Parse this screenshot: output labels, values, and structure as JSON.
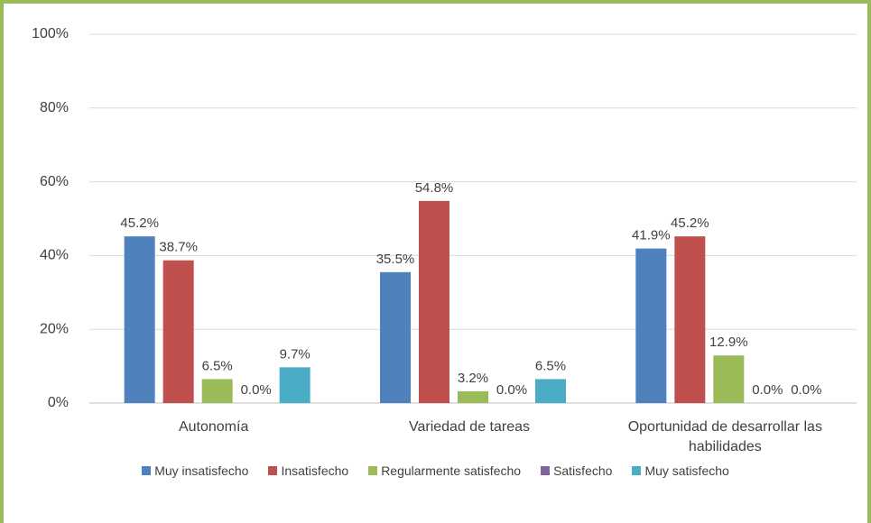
{
  "chart_data": {
    "type": "bar",
    "categories": [
      "Autonomía",
      "Variedad de tareas",
      "Oportunidad de desarrollar las habilidades"
    ],
    "series": [
      {
        "name": "Muy insatisfecho",
        "color": "#4f81bd",
        "values": [
          45.2,
          35.5,
          41.9
        ],
        "value_labels": [
          "45.2%",
          "35.5%",
          "41.9%"
        ]
      },
      {
        "name": "Insatisfecho",
        "color": "#c0504d",
        "values": [
          38.7,
          54.8,
          45.2
        ],
        "value_labels": [
          "38.7%",
          "54.8%",
          "45.2%"
        ]
      },
      {
        "name": "Regularmente satisfecho",
        "color": "#9bbb59",
        "values": [
          6.5,
          3.2,
          12.9
        ],
        "value_labels": [
          "6.5%",
          "3.2%",
          "12.9%"
        ]
      },
      {
        "name": "Satisfecho",
        "color": "#8064a2",
        "values": [
          0.0,
          0.0,
          0.0
        ],
        "value_labels": [
          "0.0%",
          "0.0%",
          "0.0%"
        ]
      },
      {
        "name": "Muy satisfecho",
        "color": "#4bacc6",
        "values": [
          9.7,
          6.5,
          0.0
        ],
        "value_labels": [
          "9.7%",
          "6.5%",
          "0.0%"
        ]
      }
    ],
    "ylim": [
      0,
      100
    ],
    "yticks": [
      {
        "value": 0,
        "label": "0%"
      },
      {
        "value": 20,
        "label": "20%"
      },
      {
        "value": 40,
        "label": "40%"
      },
      {
        "value": 60,
        "label": "60%"
      },
      {
        "value": 80,
        "label": "80%"
      },
      {
        "value": 100,
        "label": "100%"
      }
    ],
    "grid": true,
    "legend": "bottom"
  }
}
